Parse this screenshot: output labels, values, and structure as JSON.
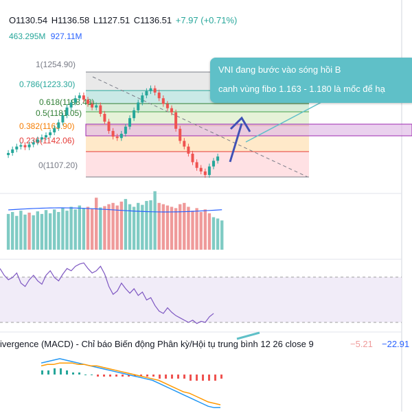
{
  "legend": {
    "open": "O1130.54",
    "high": "H1136.58",
    "low": "L1127.51",
    "close": "C1136.51",
    "change": "+7.97 (+0.71%)",
    "vol1": "463.295M",
    "vol2": "927.11M"
  },
  "fib_levels": [
    {
      "label": "1(1254.90)",
      "color": "#787b86"
    },
    {
      "label": "0.786(1223.30)",
      "color": "#26a69a"
    },
    {
      "label": "0.618(1198.48)",
      "color": "#2e7d32"
    },
    {
      "label": "0.5(1181.05)",
      "color": "#2e7d32"
    },
    {
      "label": "0.382(1163.90)",
      "color": "#f57c00"
    },
    {
      "label": "0.236(1142.06)",
      "color": "#e53935"
    },
    {
      "label": "0(1107.20)",
      "color": "#787b86"
    }
  ],
  "callout": {
    "line1": "VNI đang bước vào sóng hồi B",
    "line2": "canh vùng fibo 1.163 - 1.180 là mốc để hạ"
  },
  "macd": {
    "label": "ivergence (MACD) - Chỉ báo Biến động Phân kỳ/Hội tụ trung bình 12 26 close 9",
    "value1": "−5.21",
    "value2": "−22.91"
  },
  "colors": {
    "up": "#26a69a",
    "down": "#ef5350",
    "callout_bg": "#5fc0c8",
    "rsi_band": "#ede7f6",
    "highlight_band": "#e1bee7",
    "arrow": "#3f51b5"
  },
  "chart_data": {
    "type": "candlestick",
    "price_series": [
      1138,
      1141,
      1146,
      1150,
      1152,
      1149,
      1153,
      1156,
      1160,
      1163,
      1166,
      1170,
      1176,
      1184,
      1194,
      1205,
      1212,
      1218,
      1222,
      1216,
      1210,
      1205,
      1208,
      1196,
      1185,
      1172,
      1164,
      1162,
      1168,
      1178,
      1190,
      1201,
      1212,
      1222,
      1228,
      1232,
      1226,
      1218,
      1210,
      1204,
      1198,
      1175,
      1158,
      1150,
      1140,
      1128,
      1120,
      1115,
      1110,
      1122,
      1130,
      1136
    ],
    "volume_series": [
      55,
      58,
      52,
      60,
      54,
      57,
      53,
      59,
      55,
      61,
      56,
      62,
      58,
      64,
      60,
      66,
      62,
      68,
      64,
      66,
      63,
      80,
      65,
      67,
      70,
      72,
      68,
      74,
      78,
      70,
      66,
      72,
      69,
      75,
      76,
      90,
      72,
      70,
      68,
      66,
      64,
      70,
      72,
      66,
      60,
      64,
      58,
      62,
      56,
      50,
      48,
      45
    ],
    "rsi_series": [
      68,
      62,
      58,
      60,
      64,
      55,
      52,
      58,
      62,
      57,
      54,
      62,
      66,
      60,
      57,
      63,
      68,
      66,
      70,
      72,
      73,
      68,
      64,
      66,
      70,
      63,
      52,
      45,
      48,
      55,
      50,
      46,
      50,
      44,
      47,
      40,
      42,
      35,
      30,
      28,
      33,
      29,
      26,
      24,
      22,
      20,
      22,
      19,
      21,
      20,
      25,
      28
    ],
    "macd_line": [
      8,
      9,
      10,
      11,
      10,
      9,
      8,
      7,
      6,
      5,
      4,
      3,
      2,
      1,
      0,
      -1,
      -2,
      -3,
      -4,
      -6,
      -8,
      -10,
      -12,
      -14,
      -16,
      -18,
      -20,
      -22,
      -23,
      -22.91
    ],
    "signal_line": [
      6,
      7,
      7,
      8,
      8,
      8,
      7,
      7,
      6,
      6,
      5,
      4,
      3,
      2,
      1,
      0,
      -1,
      -2,
      -3,
      -4,
      -6,
      -8,
      -10,
      -12,
      -13,
      -15,
      -17,
      -19,
      -20,
      -21
    ],
    "histogram": [
      2,
      2,
      3,
      3,
      2,
      1,
      1,
      0,
      0,
      -1,
      -1,
      -1,
      -1,
      -1,
      -1,
      -1,
      -1,
      -1,
      -1,
      -2,
      -2,
      -2,
      -2,
      -2,
      -3,
      -3,
      -3,
      -3,
      -3,
      -2
    ]
  }
}
